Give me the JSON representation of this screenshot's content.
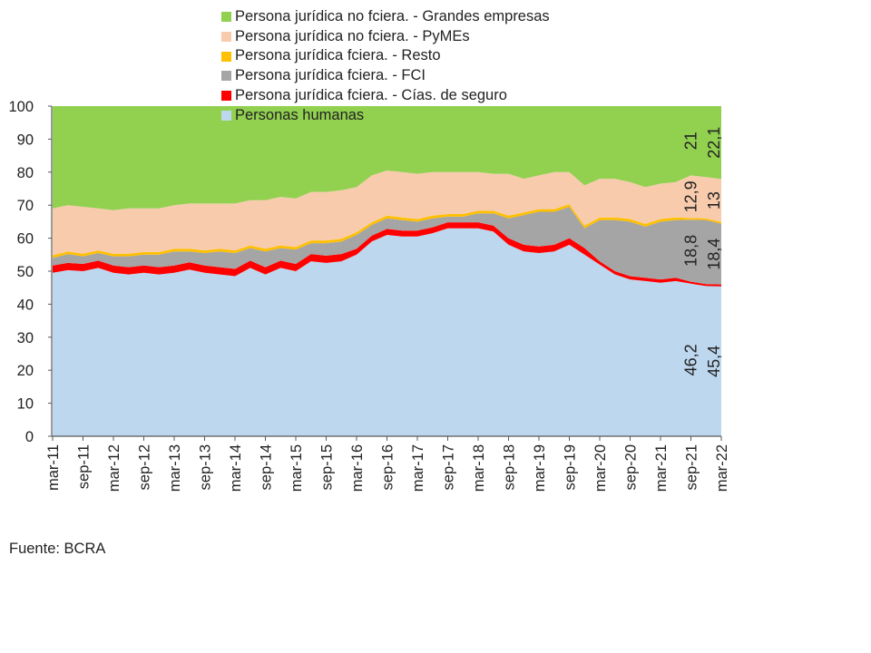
{
  "chart_data": {
    "type": "area",
    "stacked": true,
    "title": "",
    "xlabel": "",
    "ylabel": "",
    "ylim": [
      0,
      100
    ],
    "yticks": [
      0,
      10,
      20,
      30,
      40,
      50,
      60,
      70,
      80,
      90,
      100
    ],
    "grid": false,
    "legend_position": "top",
    "x_tick_labels": [
      "mar-11",
      "sep-11",
      "mar-12",
      "sep-12",
      "mar-13",
      "sep-13",
      "mar-14",
      "sep-14",
      "mar-15",
      "sep-15",
      "mar-16",
      "sep-16",
      "mar-17",
      "sep-17",
      "mar-18",
      "sep-18",
      "mar-19",
      "sep-19",
      "mar-20",
      "sep-20",
      "mar-21",
      "sep-21",
      "mar-22"
    ],
    "x": [
      "mar-11",
      "jun-11",
      "sep-11",
      "dic-11",
      "mar-12",
      "jun-12",
      "sep-12",
      "dic-12",
      "mar-13",
      "jun-13",
      "sep-13",
      "dic-13",
      "mar-14",
      "jun-14",
      "sep-14",
      "dic-14",
      "mar-15",
      "jun-15",
      "sep-15",
      "dic-15",
      "mar-16",
      "jun-16",
      "sep-16",
      "dic-16",
      "mar-17",
      "jun-17",
      "sep-17",
      "dic-17",
      "mar-18",
      "jun-18",
      "sep-18",
      "dic-18",
      "mar-19",
      "jun-19",
      "sep-19",
      "dic-19",
      "mar-20",
      "jun-20",
      "sep-20",
      "dic-20",
      "mar-21",
      "jun-21",
      "sep-21",
      "dic-21",
      "mar-22"
    ],
    "series": [
      {
        "name": "Personas humanas",
        "color": "#bdd7ee",
        "values": [
          49.5,
          50.3,
          50,
          51,
          49.5,
          49,
          49.5,
          49,
          49.5,
          50.5,
          49.5,
          49,
          48.5,
          51,
          49,
          51,
          50,
          53,
          52.5,
          53,
          55,
          59,
          61,
          60.5,
          60.5,
          61.5,
          63,
          63,
          63,
          62,
          58,
          56,
          55.5,
          56,
          58,
          55,
          52,
          49,
          47.5,
          47,
          46.5,
          47,
          46.2,
          45.5,
          45.4
        ]
      },
      {
        "name": "Persona jurídica fciera. - Cías. de seguro",
        "color": "#ff0000",
        "values": [
          2.2,
          2.2,
          2.2,
          2.2,
          2.2,
          2.2,
          2.2,
          2.2,
          2.2,
          2.2,
          2.2,
          2.2,
          2.2,
          2.2,
          2.2,
          2.2,
          2.2,
          2.2,
          2.2,
          2.2,
          1.8,
          1.8,
          1.8,
          1.8,
          1.8,
          1.8,
          1.8,
          1.8,
          1.8,
          1.8,
          2,
          2,
          2,
          2,
          2,
          2,
          1,
          1,
          1,
          1,
          1,
          1,
          0.6,
          0.6,
          0.6
        ]
      },
      {
        "name": "Persona jurídica fciera. - FCI",
        "color": "#a5a5a5",
        "values": [
          2.3,
          2.7,
          2.3,
          2.3,
          2.8,
          3.3,
          3.3,
          3.8,
          4.3,
          3.3,
          3.8,
          4.8,
          4.8,
          3.8,
          4.8,
          3.8,
          4.3,
          3.3,
          3.8,
          3.8,
          4.2,
          3.2,
          3.2,
          3.2,
          2.7,
          2.7,
          1.7,
          1.7,
          2.7,
          3.7,
          6,
          9,
          10.5,
          10,
          9.5,
          6,
          12.5,
          15.5,
          16.5,
          15.5,
          17.5,
          17.5,
          18.8,
          19.4,
          18.4
        ]
      },
      {
        "name": "Persona jurídica fciera. - Resto",
        "color": "#ffc000",
        "values": [
          0.8,
          0.8,
          0.8,
          0.8,
          0.8,
          0.8,
          0.8,
          0.8,
          0.8,
          0.8,
          0.8,
          0.8,
          0.8,
          0.8,
          0.8,
          0.8,
          0.8,
          0.8,
          0.8,
          0.8,
          0.8,
          0.8,
          0.8,
          0.8,
          0.8,
          0.8,
          0.8,
          0.8,
          0.8,
          0.8,
          0.8,
          0.8,
          0.8,
          0.8,
          0.8,
          0.8,
          0.8,
          0.8,
          0.8,
          0.8,
          0.8,
          0.8,
          0.5,
          0.5,
          0.5
        ]
      },
      {
        "name": "Persona jurídica no fciera. - PyMEs",
        "color": "#f8cbad",
        "values": [
          14.2,
          14,
          14.2,
          12.7,
          13.2,
          13.7,
          13.2,
          13.2,
          13.2,
          13.7,
          14.2,
          13.7,
          14.2,
          13.7,
          14.7,
          14.7,
          14.7,
          14.7,
          14.7,
          14.7,
          13.7,
          14.2,
          13.7,
          13.7,
          13.7,
          13.2,
          12.7,
          12.7,
          11.7,
          11.2,
          12.7,
          10.2,
          10.2,
          11.2,
          9.7,
          12.2,
          11.7,
          11.7,
          11.2,
          11.2,
          10.7,
          10.7,
          12.9,
          12.5,
          13
        ]
      },
      {
        "name": "Persona jurídica no fciera. - Grandes empresas",
        "color": "#92d050",
        "values": [
          31,
          30,
          30.5,
          31,
          31.5,
          31,
          31,
          31,
          30,
          29.5,
          29.5,
          29.5,
          29.5,
          28.5,
          28.5,
          27.5,
          28,
          26,
          26,
          25.5,
          24.5,
          21,
          19.5,
          20,
          20.5,
          20,
          20,
          20,
          20,
          20.5,
          20.5,
          22,
          21,
          20,
          20,
          24,
          22,
          22,
          23,
          24.5,
          23.5,
          23,
          21,
          21.5,
          22.1
        ]
      }
    ],
    "annotations": [
      {
        "series": "Personas humanas",
        "at": "sep-21",
        "text": "46,2"
      },
      {
        "series": "Personas humanas",
        "at": "mar-22",
        "text": "45,4"
      },
      {
        "series": "Persona jurídica fciera. - FCI",
        "at": "sep-21",
        "text": "18,8"
      },
      {
        "series": "Persona jurídica fciera. - FCI",
        "at": "mar-22",
        "text": "18,4"
      },
      {
        "series": "Persona jurídica no fciera. - PyMEs",
        "at": "sep-21",
        "text": "12,9"
      },
      {
        "series": "Persona jurídica no fciera. - PyMEs",
        "at": "mar-22",
        "text": "13"
      },
      {
        "series": "Persona jurídica no fciera. - Grandes empresas",
        "at": "sep-21",
        "text": "21"
      },
      {
        "series": "Persona jurídica no fciera. - Grandes empresas",
        "at": "mar-22",
        "text": "22,1"
      }
    ],
    "legend_order": [
      5,
      4,
      3,
      2,
      1,
      0
    ]
  },
  "footer": {
    "source": "Fuente: BCRA"
  }
}
